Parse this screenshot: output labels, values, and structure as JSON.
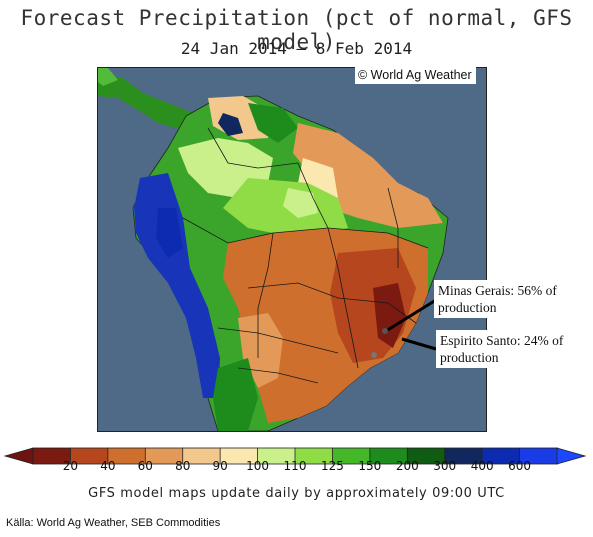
{
  "title": "Forecast Precipitation (pct of normal, GFS model)",
  "subtitle": "24 Jan 2014 — 8 Feb 2014",
  "copyright": "© World Ag Weather",
  "callouts": {
    "minas_gerais": {
      "line1": "Minas Gerais: 56% of",
      "line2": "production"
    },
    "espirito_santo": {
      "line1": "Espirito Santo: 24% of",
      "line2": "production"
    }
  },
  "colorbar": {
    "ticks": [
      "20",
      "40",
      "60",
      "80",
      "90",
      "100",
      "110",
      "125",
      "150",
      "200",
      "300",
      "400",
      "600"
    ],
    "colors": [
      "#7a1a10",
      "#b5461e",
      "#cf6f2e",
      "#e39a58",
      "#f2c88c",
      "#fbe8b0",
      "#c9f08a",
      "#8fdc46",
      "#45b82a",
      "#1e8c1c",
      "#0f5c12",
      "#10285e",
      "#0c2bb0",
      "#1a3ce6"
    ],
    "low_arrow_color": "#6e1410",
    "high_arrow_color": "#1a49ff"
  },
  "footer": "GFS model maps update daily by approximately 09:00 UTC",
  "source": "Källa: World Ag Weather, SEB Commodities",
  "map": {
    "ocean_color": "#4f6a86",
    "region": "South America",
    "markers": [
      "Minas Gerais",
      "Espirito Santo"
    ]
  }
}
